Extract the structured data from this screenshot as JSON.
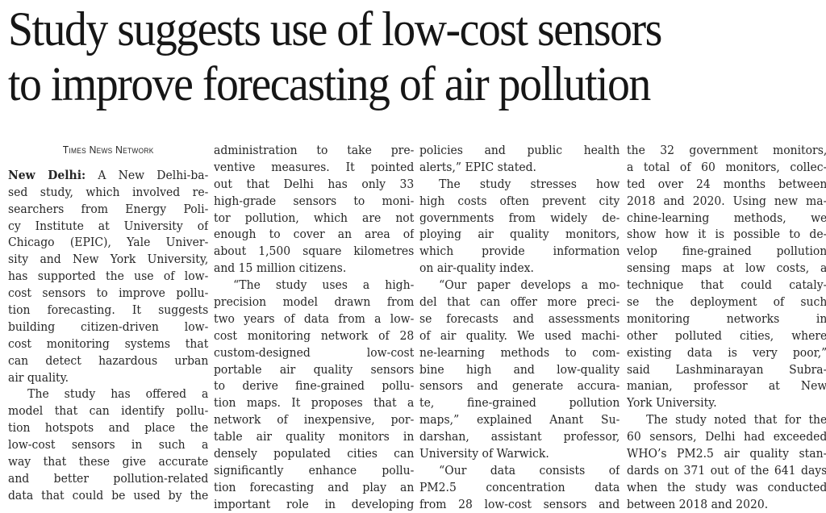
{
  "headline": {
    "line1": "Study suggests use of low-cost sensors",
    "line2": "to improve forecasting of air pollution"
  },
  "byline": "Times News Network",
  "dateline": "New Delhi:",
  "columns": [
    {
      "lines": [
        " A New Delhi-ba-",
        "sed study, which involved re-",
        "searchers from Energy Poli-",
        "cy Institute at University of",
        "Chicago (EPIC), Yale Univer-",
        "sity and New York University,",
        "has supported the use of low-",
        "cost sensors to improve pollu-",
        "tion forecasting. It suggests",
        "building citizen-driven low-",
        "cost monitoring systems that",
        "can detect hazardous urban",
        "air quality.",
        "The study has offered a",
        "model that can identify pollu-",
        "tion hotspots and place the",
        "low-cost sensors in such a",
        "way that these give accurate",
        "and better pollution-related",
        "data that could be used by the"
      ]
    },
    {
      "lines": [
        "administration to take pre-",
        "ventive measures. It pointed",
        "out that Delhi has only 33",
        "high-grade sensors to moni-",
        "tor pollution, which are not",
        "enough to cover an area of",
        "about 1,500 square kilometres",
        "and 15 million citizens.",
        "“The study uses a high-",
        "precision model drawn from",
        "two years of data from a low-",
        "cost monitoring network of 28",
        "custom-designed low-cost",
        "portable air quality sensors",
        "to derive fine-grained pollu-",
        "tion maps. It proposes that a",
        "network of inexpensive, por-",
        "table air quality monitors in",
        "densely populated cities can",
        "significantly enhance pollu-",
        "tion forecasting and play an",
        "important role in developing"
      ]
    },
    {
      "lines": [
        "policies and public health",
        "alerts,” EPIC stated.",
        "The study stresses how",
        "high costs often prevent city",
        "governments from widely de-",
        "ploying air quality monitors,",
        "which provide information",
        "on air-quality index.",
        "“Our paper develops a mo-",
        "del that can offer more preci-",
        "se forecasts and assessments",
        "of air quality. We used machi-",
        "ne-learning methods to com-",
        "bine high and low-quality",
        "sensors and generate accura-",
        "te, fine-grained pollution",
        "maps,” explained Anant Su-",
        "darshan, assistant professor,",
        "University of Warwick.",
        "“Our data consists of",
        "PM2.5 concentration data",
        "from 28 low-cost sensors and"
      ]
    },
    {
      "lines": [
        "the 32 government monitors,",
        "a total of 60 monitors, collec-",
        "ted over 24 months between",
        "2018 and 2020. Using new ma-",
        "chine-learning methods, we",
        "show how it is possible to de-",
        "velop fine-grained pollution",
        "sensing maps at low costs, a",
        "technique that could cataly-",
        "se the deployment of such",
        "monitoring networks in",
        "other polluted cities, where",
        "existing data is very poor,”",
        "said Lashminarayan Subra-",
        "manian, professor at New",
        "York University.",
        "The study noted that for the",
        "60 sensors, Delhi had exceeded",
        "WHO’s PM2.5 air quality stan-",
        "dards on 371 out of the 641 days",
        "when the study was conducted",
        "between 2018 and 2020."
      ]
    }
  ]
}
